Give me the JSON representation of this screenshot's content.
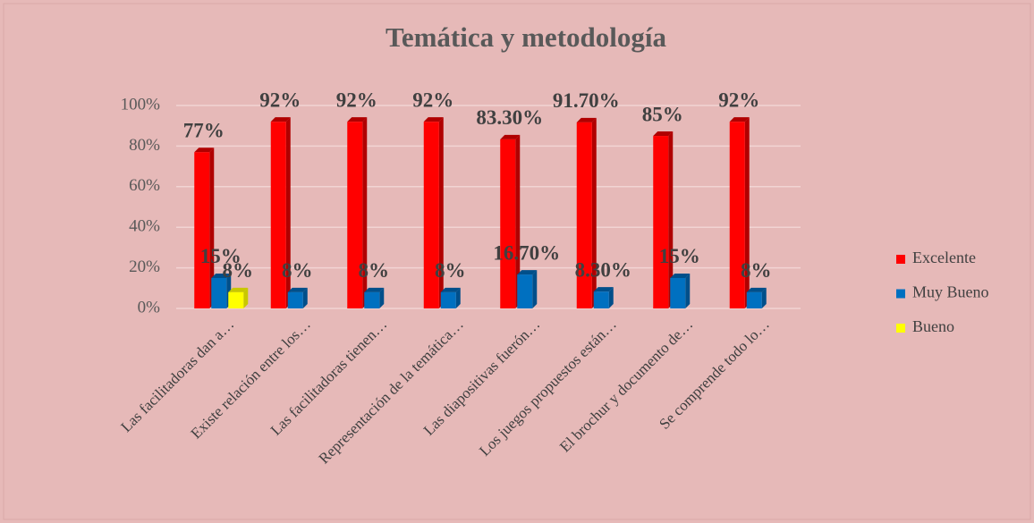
{
  "chart_data": {
    "type": "bar",
    "title": "Temática y metodología",
    "categories": [
      "Las facilitadoras dan a…",
      "Existe relación entre los…",
      "Las facilitadoras tienen…",
      "Representación de la temática…",
      "Las diapositivas fuerón…",
      "Los juegos propuestos están…",
      "El brochur y documento de…",
      "Se comprende todo lo…"
    ],
    "series": [
      {
        "name": "Excelente",
        "color": "#ff0000",
        "values": [
          77,
          92,
          92,
          92,
          83.3,
          91.7,
          85,
          92
        ],
        "value_labels": [
          "77%",
          "92%",
          "92%",
          "92%",
          "83.30%",
          "91.70%",
          "85%",
          "92%"
        ]
      },
      {
        "name": "Muy Bueno",
        "color": "#0070c0",
        "values": [
          15,
          8,
          8,
          8,
          16.7,
          8.3,
          15,
          8
        ],
        "value_labels": [
          "15%",
          "8%",
          "8%",
          "8%",
          "16.70%",
          "8.30%",
          "15%",
          "8%"
        ]
      },
      {
        "name": "Bueno",
        "color": "#ffff00",
        "values": [
          8,
          null,
          null,
          null,
          null,
          null,
          null,
          null
        ],
        "value_labels": [
          "8%",
          null,
          null,
          null,
          null,
          null,
          null,
          null
        ]
      }
    ],
    "ylim": [
      0,
      100
    ],
    "yticks": [
      {
        "value": 0,
        "label": "0%"
      },
      {
        "value": 20,
        "label": "20%"
      },
      {
        "value": 40,
        "label": "40%"
      },
      {
        "value": 60,
        "label": "60%"
      },
      {
        "value": 80,
        "label": "80%"
      },
      {
        "value": 100,
        "label": "100%"
      }
    ],
    "grid": true,
    "legend": "right"
  }
}
